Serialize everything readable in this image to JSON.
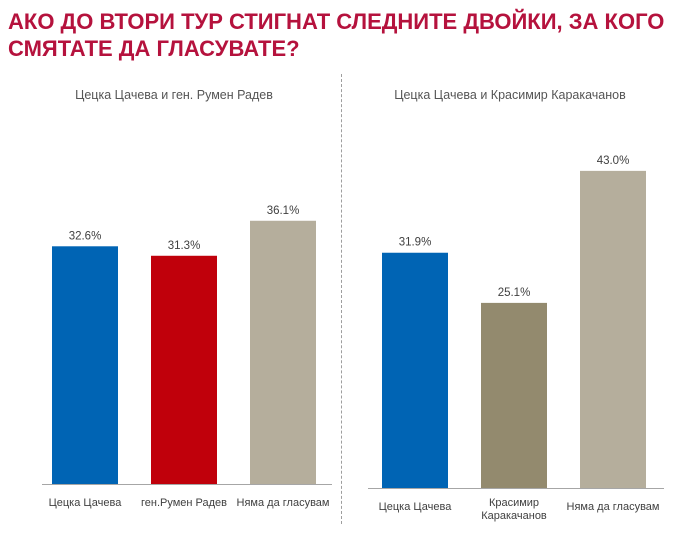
{
  "headline": "АКО ДО ВТОРИ ТУР СТИГНАТ СЛЕДНИТЕ ДВОЙКИ, ЗА КОГО СМЯТАТЕ ДА ГЛАСУВАТЕ?",
  "colors": {
    "headline": "#b5123d",
    "blue": "#0064b4",
    "red": "#c0000b",
    "beige": "#b5ae9c",
    "olive": "#938a6e",
    "axis": "#a6a6a6"
  },
  "chart_data": [
    {
      "type": "bar",
      "title": "Цецка Цачева и ген. Румен Радев",
      "categories": [
        "Цецка Цачева",
        "ген.Румен Радев",
        "Няма да гласувам"
      ],
      "values": [
        32.6,
        31.3,
        36.1
      ],
      "value_labels": [
        "32.6%",
        "31.3%",
        "36.1%"
      ],
      "bar_colors": [
        "#0064b4",
        "#c0000b",
        "#b5ae9c"
      ],
      "ylim": [
        0,
        48
      ],
      "grid": false,
      "legend": false
    },
    {
      "type": "bar",
      "title": "Цецка Цачева и Красимир Каракачанов",
      "categories": [
        "Цецка Цачева",
        "Красимир Каракачанов",
        "Няма да гласувам"
      ],
      "values": [
        31.9,
        25.1,
        43.0
      ],
      "value_labels": [
        "31.9%",
        "25.1%",
        "43.0%"
      ],
      "bar_colors": [
        "#0064b4",
        "#938a6e",
        "#b5ae9c"
      ],
      "ylim": [
        0,
        48
      ],
      "grid": false,
      "legend": false
    }
  ]
}
